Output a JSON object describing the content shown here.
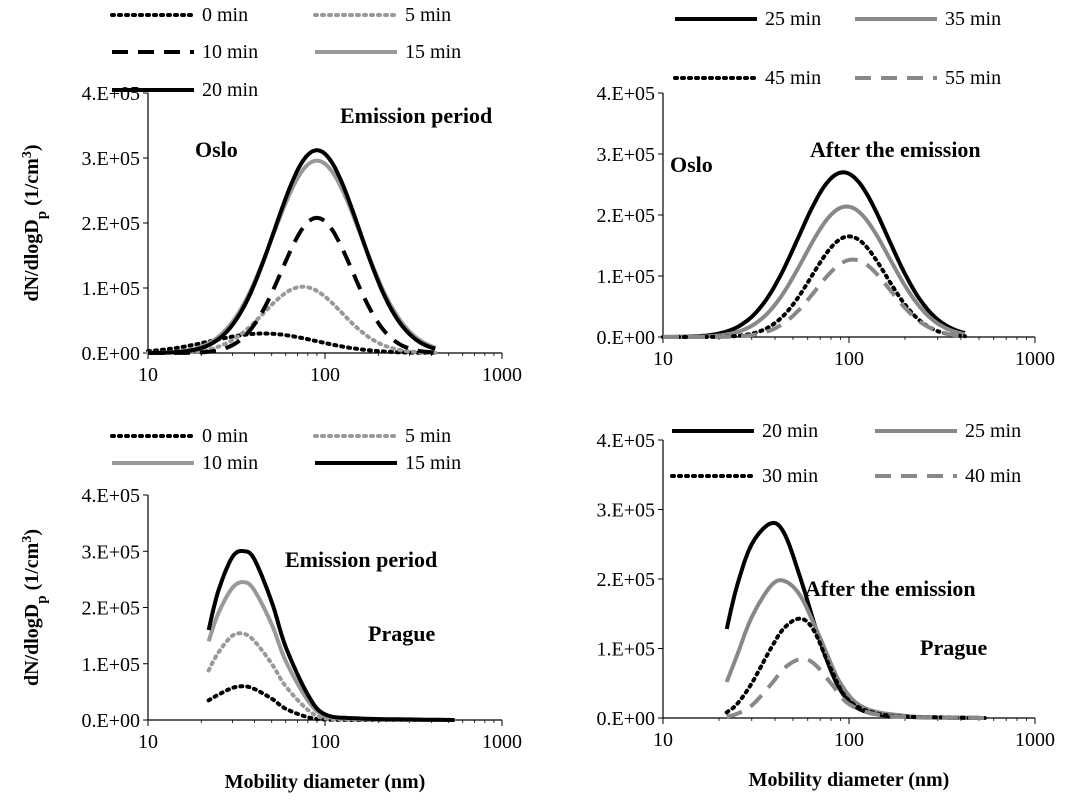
{
  "chart_data": [
    {
      "type": "line",
      "panel": "top-left",
      "x_scale": "log",
      "xlim": [
        10,
        1000
      ],
      "ylim": [
        0,
        400000
      ],
      "x_ticks": [
        "10",
        "100",
        "1000"
      ],
      "y_ticks": [
        "0.E+00",
        "1.E+05",
        "2.E+05",
        "3.E+05",
        "4.E+05"
      ],
      "ylabel_main": "dN/dlogD",
      "ylabel_sub": "p",
      "ylabel_unit": " (1/cm",
      "ylabel_sup": "3",
      "ylabel_close": ")",
      "xlabel": "",
      "annotations": [
        "Oslo",
        "Emission period"
      ],
      "legend_placement": "top-left",
      "series": [
        {
          "name": "0 min",
          "color": "#000000",
          "dash": "dotted",
          "peak_x": 45,
          "peak_y": 30000,
          "width": 0.3,
          "x": [
            10,
            15,
            20,
            30,
            45,
            60,
            80,
            100,
            150,
            200,
            300,
            420
          ],
          "y": [
            1000,
            3000,
            8000,
            20000,
            30000,
            28000,
            22000,
            17000,
            9000,
            5000,
            2000,
            500
          ]
        },
        {
          "name": "5 min",
          "color": "#999999",
          "dash": "dotted",
          "peak_x": 75,
          "peak_y": 102000,
          "width": 0.22,
          "x": [
            10,
            15,
            20,
            30,
            45,
            60,
            75,
            100,
            150,
            200,
            300,
            420
          ],
          "y": [
            1500,
            4000,
            9000,
            30000,
            72000,
            96000,
            102000,
            92000,
            50000,
            22000,
            5000,
            1000
          ]
        },
        {
          "name": "10 min",
          "color": "#000000",
          "dash": "dashed",
          "peak_x": 90,
          "peak_y": 208000,
          "width": 0.2,
          "x": [
            10,
            15,
            20,
            30,
            45,
            60,
            90,
            120,
            150,
            200,
            300,
            420
          ],
          "y": [
            1000,
            3000,
            6000,
            20000,
            60000,
            120000,
            208000,
            190000,
            140000,
            70000,
            15000,
            2000
          ]
        },
        {
          "name": "15 min",
          "color": "#999999",
          "dash": "solid",
          "peak_x": 90,
          "peak_y": 296000,
          "width": 0.25,
          "x": [
            10,
            15,
            20,
            30,
            45,
            60,
            90,
            120,
            150,
            200,
            300,
            420
          ],
          "y": [
            2000,
            4000,
            8000,
            25000,
            100000,
            190000,
            296000,
            270000,
            200000,
            110000,
            40000,
            18000
          ]
        },
        {
          "name": "20 min",
          "color": "#000000",
          "dash": "solid",
          "peak_x": 90,
          "peak_y": 312000,
          "width": 0.24,
          "x": [
            10,
            15,
            20,
            30,
            45,
            60,
            90,
            120,
            150,
            200,
            300,
            420
          ],
          "y": [
            2000,
            4000,
            8000,
            25000,
            100000,
            200000,
            312000,
            280000,
            200000,
            100000,
            25000,
            5000
          ]
        }
      ]
    },
    {
      "type": "line",
      "panel": "top-right",
      "x_scale": "log",
      "xlim": [
        10,
        1000
      ],
      "ylim": [
        0,
        400000
      ],
      "x_ticks": [
        "10",
        "100",
        "1000"
      ],
      "y_ticks": [
        "0.E+00",
        "1.E+05",
        "2.E+05",
        "3.E+05",
        "4.E+05"
      ],
      "annotations": [
        "Oslo",
        "After the emission"
      ],
      "legend_placement": "top",
      "series": [
        {
          "name": "25 min",
          "color": "#000000",
          "dash": "solid",
          "peak_x": 93,
          "peak_y": 270000,
          "width": 0.24,
          "x": [
            10,
            15,
            20,
            30,
            45,
            60,
            93,
            120,
            150,
            200,
            300,
            420
          ],
          "y": [
            1000,
            2000,
            4000,
            20000,
            80000,
            160000,
            270000,
            240000,
            170000,
            80000,
            20000,
            3000
          ]
        },
        {
          "name": "35 min",
          "color": "#888888",
          "dash": "solid",
          "peak_x": 97,
          "peak_y": 214000,
          "width": 0.23,
          "x": [
            10,
            15,
            20,
            30,
            45,
            60,
            97,
            120,
            150,
            200,
            300,
            420
          ],
          "y": [
            1000,
            2000,
            3000,
            12000,
            55000,
            120000,
            214000,
            200000,
            150000,
            80000,
            20000,
            3000
          ]
        },
        {
          "name": "45 min",
          "color": "#000000",
          "dash": "dotted",
          "peak_x": 100,
          "peak_y": 165000,
          "width": 0.2,
          "x": [
            10,
            15,
            20,
            30,
            45,
            60,
            100,
            120,
            150,
            200,
            300,
            420
          ],
          "y": [
            500,
            1000,
            2000,
            6000,
            30000,
            75000,
            165000,
            155000,
            110000,
            55000,
            12000,
            2000
          ]
        },
        {
          "name": "55 min",
          "color": "#888888",
          "dash": "dashed",
          "peak_x": 105,
          "peak_y": 127000,
          "width": 0.2,
          "x": [
            10,
            15,
            20,
            30,
            45,
            60,
            105,
            120,
            150,
            200,
            300,
            420
          ],
          "y": [
            500,
            1000,
            2000,
            5000,
            20000,
            50000,
            127000,
            122000,
            95000,
            50000,
            12000,
            2000
          ]
        }
      ]
    },
    {
      "type": "line",
      "panel": "bottom-left",
      "x_scale": "log",
      "xlim": [
        10,
        1000
      ],
      "ylim": [
        0,
        400000
      ],
      "x_ticks": [
        "10",
        "100",
        "1000"
      ],
      "y_ticks": [
        "0.E+00",
        "1.E+05",
        "2.E+05",
        "3.E+05",
        "4.E+05"
      ],
      "ylabel_main": "dN/dlogD",
      "ylabel_sub": "p",
      "ylabel_unit": " (1/cm",
      "ylabel_sup": "3",
      "ylabel_close": ")",
      "xlabel": "Mobility diameter (nm)",
      "annotations": [
        "Emission period",
        "Prague"
      ],
      "legend_placement": "top",
      "series": [
        {
          "name": "0 min",
          "color": "#000000",
          "dash": "dotted",
          "x": [
            22,
            25,
            30,
            35,
            40,
            50,
            60,
            80,
            100,
            150,
            300,
            540
          ],
          "y": [
            35000,
            45000,
            57000,
            60000,
            55000,
            38000,
            20000,
            5000,
            1000,
            0,
            0,
            0
          ]
        },
        {
          "name": "5 min",
          "color": "#999999",
          "dash": "dotted",
          "x": [
            22,
            25,
            30,
            35,
            40,
            50,
            60,
            80,
            100,
            150,
            300,
            540
          ],
          "y": [
            88000,
            120000,
            150000,
            153000,
            140000,
            100000,
            60000,
            18000,
            3000,
            500,
            0,
            0
          ]
        },
        {
          "name": "10 min",
          "color": "#999999",
          "dash": "solid",
          "x": [
            22,
            25,
            30,
            35,
            40,
            50,
            60,
            80,
            100,
            150,
            300,
            540
          ],
          "y": [
            140000,
            190000,
            235000,
            245000,
            230000,
            170000,
            105000,
            35000,
            8000,
            2000,
            500,
            0
          ]
        },
        {
          "name": "15 min",
          "color": "#000000",
          "dash": "solid",
          "x": [
            22,
            25,
            30,
            35,
            40,
            50,
            60,
            80,
            100,
            150,
            300,
            540
          ],
          "y": [
            160000,
            230000,
            290000,
            300000,
            285000,
            210000,
            130000,
            45000,
            10000,
            3000,
            1000,
            0
          ]
        }
      ]
    },
    {
      "type": "line",
      "panel": "bottom-right",
      "x_scale": "log",
      "xlim": [
        10,
        1000
      ],
      "ylim": [
        0,
        400000
      ],
      "x_ticks": [
        "10",
        "100",
        "1000"
      ],
      "y_ticks": [
        "0.E+00",
        "1.E+05",
        "2.E+05",
        "3.E+05",
        "4.E+05"
      ],
      "xlabel": "Mobility diameter (nm)",
      "annotations": [
        "After the emission",
        "Prague"
      ],
      "legend_placement": "top",
      "series": [
        {
          "name": "20 min",
          "color": "#000000",
          "dash": "solid",
          "x": [
            22,
            25,
            30,
            38,
            45,
            55,
            70,
            90,
            120,
            200,
            350,
            540
          ],
          "y": [
            128000,
            190000,
            250000,
            280000,
            265000,
            200000,
            110000,
            40000,
            10000,
            2000,
            500,
            0
          ]
        },
        {
          "name": "25 min",
          "color": "#888888",
          "dash": "solid",
          "x": [
            22,
            25,
            30,
            38,
            45,
            55,
            70,
            90,
            120,
            200,
            350,
            540
          ],
          "y": [
            52000,
            90000,
            145000,
            190000,
            197000,
            175000,
            115000,
            50000,
            15000,
            3000,
            800,
            0
          ]
        },
        {
          "name": "30 min",
          "color": "#000000",
          "dash": "dotted",
          "x": [
            22,
            25,
            30,
            38,
            45,
            55,
            65,
            80,
            100,
            150,
            300,
            540
          ],
          "y": [
            8000,
            20000,
            50000,
            100000,
            130000,
            143000,
            125000,
            70000,
            25000,
            5000,
            1000,
            0
          ]
        },
        {
          "name": "40 min",
          "color": "#888888",
          "dash": "dashed",
          "x": [
            22,
            25,
            30,
            38,
            45,
            55,
            65,
            80,
            100,
            150,
            300,
            540
          ],
          "y": [
            2000,
            6000,
            18000,
            48000,
            72000,
            85000,
            78000,
            50000,
            20000,
            4000,
            800,
            0
          ]
        }
      ]
    }
  ]
}
